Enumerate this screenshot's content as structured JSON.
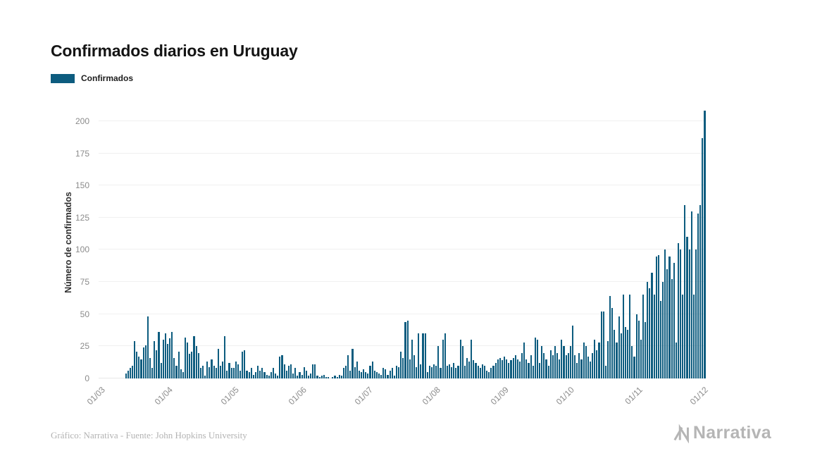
{
  "title": "Confirmados diarios en Uruguay",
  "legend": {
    "label": "Confirmados",
    "color": "#0d5c7f"
  },
  "footer": {
    "caption": "Gráfico: Narrativa - Fuente: John Hopkins University",
    "brand": "Narrativa"
  },
  "chart_data": {
    "type": "bar",
    "title": "Confirmados diarios en Uruguay",
    "xlabel": "",
    "ylabel": "Número de confirmados",
    "ylim": [
      0,
      212
    ],
    "yticks": [
      0,
      25,
      50,
      75,
      100,
      125,
      150,
      175,
      200
    ],
    "grid": "horizontal-faint",
    "legend_position": "top-left",
    "bar_color": "#0d5c7f",
    "series_name": "Confirmados",
    "x_unit": "day",
    "x_range": [
      "01/03",
      "01/12"
    ],
    "xtick_labels": [
      "01/03",
      "01/04",
      "01/05",
      "01/06",
      "01/07",
      "01/08",
      "01/09",
      "01/10",
      "01/11",
      "01/12"
    ],
    "xtick_indices": [
      0,
      31,
      61,
      92,
      122,
      153,
      184,
      214,
      245,
      275
    ],
    "values": [
      0,
      0,
      0,
      0,
      0,
      0,
      0,
      0,
      0,
      0,
      0,
      0,
      4,
      6,
      8,
      10,
      29,
      21,
      17,
      15,
      24,
      26,
      48,
      16,
      8,
      29,
      22,
      36,
      12,
      30,
      35,
      27,
      31,
      36,
      16,
      10,
      21,
      7,
      5,
      32,
      28,
      19,
      21,
      33,
      25,
      20,
      8,
      10,
      2,
      13,
      9,
      15,
      10,
      8,
      23,
      10,
      13,
      33,
      6,
      12,
      8,
      8,
      13,
      11,
      6,
      21,
      22,
      6,
      5,
      8,
      3,
      5,
      10,
      6,
      8,
      5,
      3,
      2,
      5,
      8,
      4,
      2,
      17,
      18,
      11,
      6,
      10,
      11,
      4,
      8,
      2,
      5,
      3,
      9,
      6,
      2,
      4,
      11,
      11,
      2,
      1,
      2,
      3,
      1,
      1,
      0,
      1,
      2,
      1,
      3,
      2,
      8,
      10,
      18,
      6,
      23,
      9,
      13,
      6,
      5,
      7,
      5,
      4,
      10,
      13,
      6,
      5,
      4,
      3,
      8,
      7,
      3,
      6,
      8,
      2,
      10,
      9,
      21,
      16,
      44,
      45,
      15,
      30,
      18,
      9,
      35,
      11,
      35,
      35,
      5,
      10,
      9,
      11,
      10,
      25,
      8,
      30,
      35,
      10,
      11,
      9,
      12,
      8,
      10,
      30,
      25,
      10,
      16,
      13,
      30,
      14,
      12,
      10,
      8,
      11,
      10,
      6,
      5,
      8,
      10,
      12,
      15,
      16,
      14,
      17,
      15,
      12,
      14,
      16,
      18,
      15,
      13,
      20,
      28,
      15,
      12,
      18,
      10,
      32,
      30,
      12,
      25,
      20,
      15,
      10,
      22,
      18,
      25,
      20,
      15,
      30,
      25,
      18,
      20,
      25,
      41,
      18,
      12,
      20,
      15,
      28,
      25,
      17,
      13,
      20,
      30,
      22,
      28,
      52,
      52,
      10,
      29,
      64,
      55,
      38,
      28,
      48,
      35,
      65,
      40,
      38,
      65,
      25,
      17,
      50,
      45,
      30,
      65,
      44,
      75,
      70,
      82,
      65,
      95,
      96,
      60,
      75,
      100,
      85,
      95,
      77,
      90,
      28,
      105,
      100,
      65,
      135,
      110,
      100,
      130,
      65,
      100,
      128,
      135,
      187,
      208
    ]
  }
}
